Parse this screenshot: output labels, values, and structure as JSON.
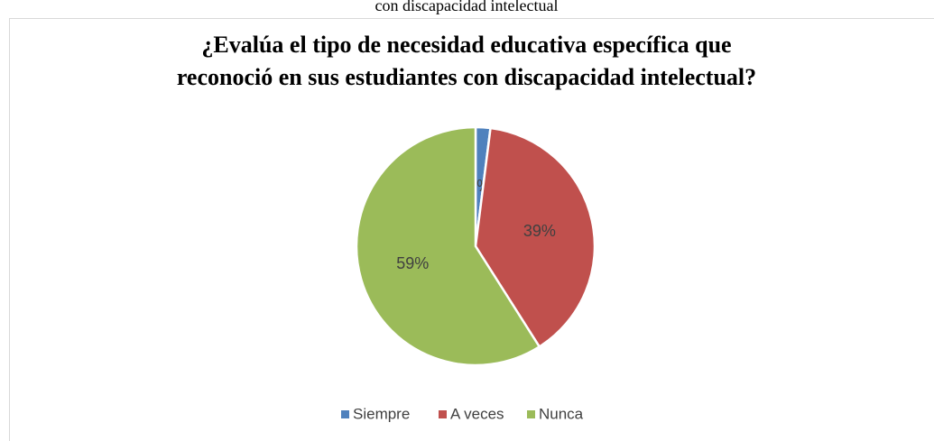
{
  "caption": "con discapacidad intelectual",
  "chart_data": {
    "type": "pie",
    "title": [
      "¿Evalúa el tipo de necesidad educativa específica que",
      "reconoció en sus estudiantes con discapacidad intelectual?"
    ],
    "categories": [
      "Siempre",
      "A veces",
      "Nunca"
    ],
    "values": [
      2,
      39,
      59
    ],
    "value_labels": [
      "2%",
      "39%",
      "59%"
    ],
    "colors": [
      "#4f81bd",
      "#c0504d",
      "#9bbb59"
    ],
    "legend": "bottom"
  }
}
